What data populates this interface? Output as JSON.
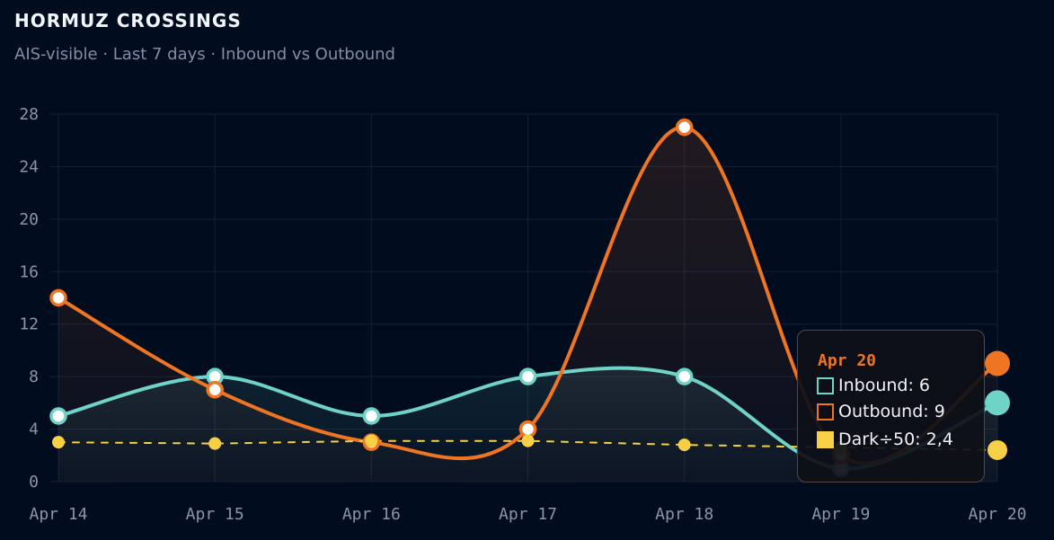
{
  "chart_data": {
    "type": "line",
    "title": "HORMUZ CROSSINGS",
    "subtitle": "AIS-visible · Last 7 days · Inbound vs Outbound",
    "categories": [
      "Apr 14",
      "Apr 15",
      "Apr 16",
      "Apr 17",
      "Apr 18",
      "Apr 19",
      "Apr 20"
    ],
    "ylim": [
      0,
      28
    ],
    "yticks": [
      0,
      4,
      8,
      12,
      16,
      20,
      24,
      28
    ],
    "grid": true,
    "series": [
      {
        "name": "Inbound",
        "values": [
          5,
          8,
          5,
          8,
          8,
          1,
          6
        ],
        "color": "#6fd3c8",
        "style": "solid",
        "fill": true
      },
      {
        "name": "Outbound",
        "values": [
          14,
          7,
          3,
          4,
          27,
          2,
          9
        ],
        "color": "#f07522",
        "style": "solid",
        "fill": true
      },
      {
        "name": "Dark÷50",
        "values": [
          3,
          2.9,
          3.1,
          3.1,
          2.8,
          2.6,
          2.4
        ],
        "color": "#f7d046",
        "style": "dashed",
        "fill": false
      }
    ],
    "tooltip": {
      "title": "Apr 20",
      "rows": [
        {
          "label": "Inbound: 6",
          "color": "#6fd3c8",
          "filled": false
        },
        {
          "label": "Outbound: 9",
          "color": "#f07522",
          "filled": false
        },
        {
          "label": "Dark÷50: 2,4",
          "color": "#f7d046",
          "filled": true
        }
      ]
    }
  }
}
